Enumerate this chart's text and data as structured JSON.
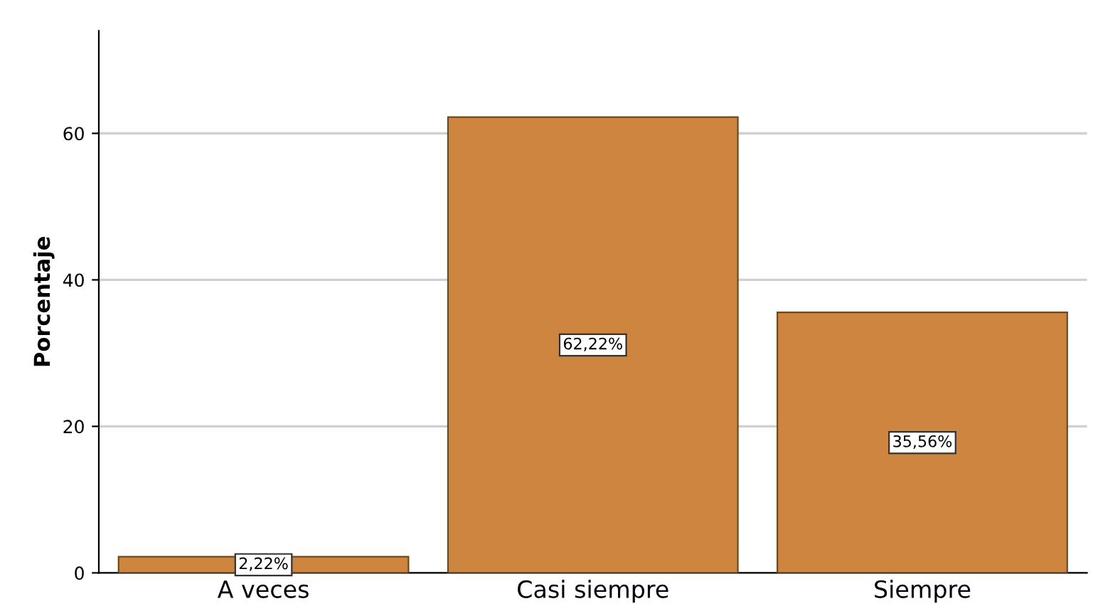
{
  "chart_data": {
    "type": "bar",
    "ylabel": "Porcentaje",
    "categories": [
      "A veces",
      "Casi siempre",
      "Siempre"
    ],
    "values": [
      2.22,
      62.22,
      35.56
    ],
    "value_labels": [
      "2,22%",
      "62,22%",
      "35,56%"
    ],
    "color": "#cd853f",
    "ylim": [
      0,
      74
    ],
    "yticks": [
      0,
      20,
      40,
      60
    ],
    "grid": "y"
  }
}
